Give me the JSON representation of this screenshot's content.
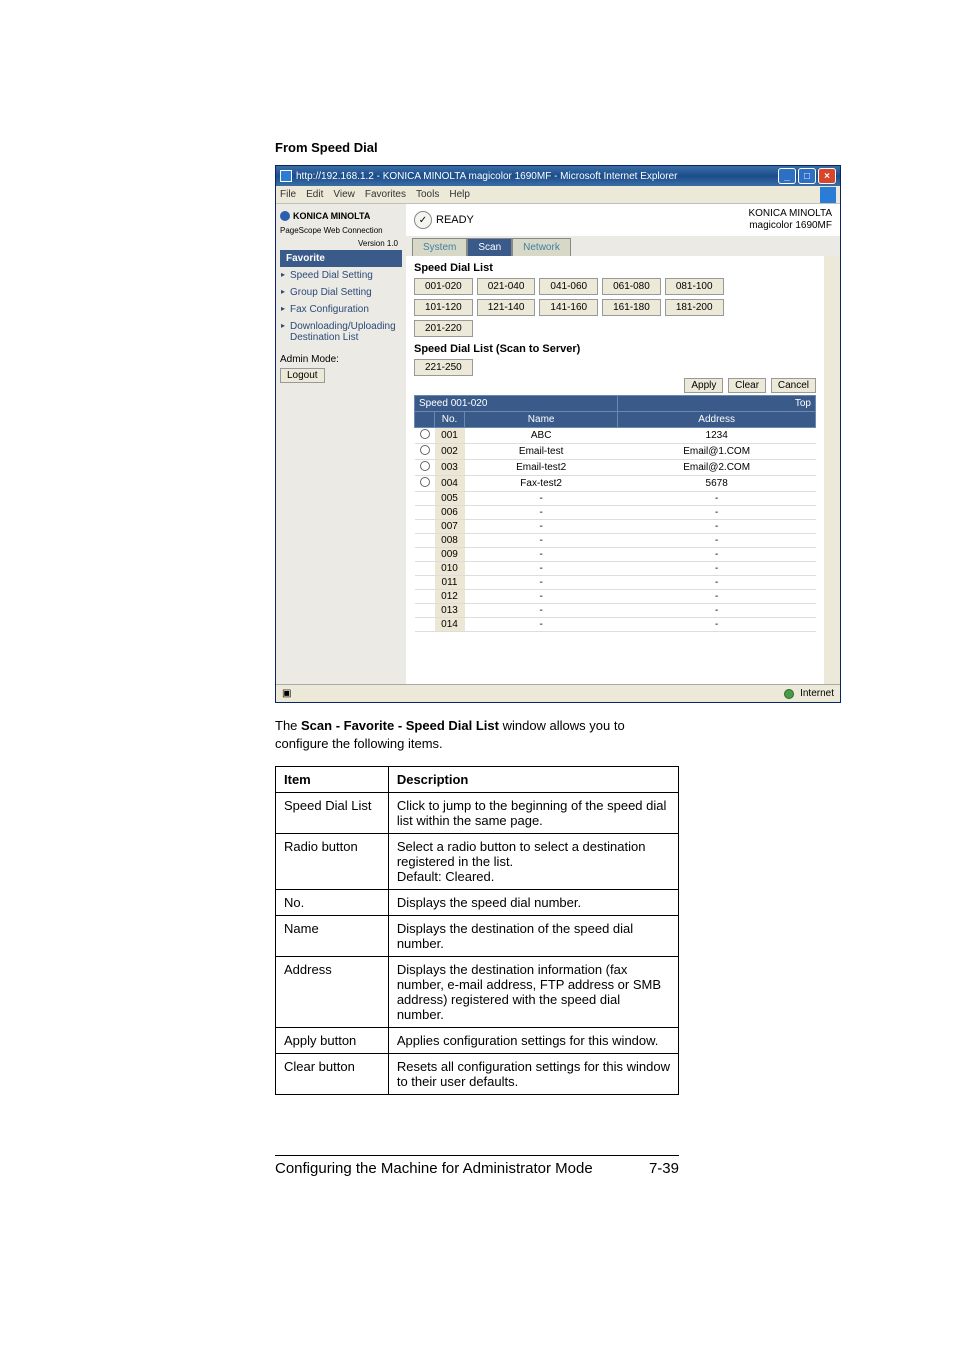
{
  "section_title": "From Speed Dial",
  "browser": {
    "title": "http://192.168.1.2 - KONICA MINOLTA magicolor 1690MF - Microsoft Internet Explorer",
    "menus": [
      "File",
      "Edit",
      "View",
      "Favorites",
      "Tools",
      "Help"
    ],
    "win_min": "_",
    "win_max": "□",
    "win_close": "×"
  },
  "left": {
    "brand": "KONICA MINOLTA",
    "pagescope": "PageScope Web Connection",
    "version": "Version 1.0",
    "nav_head": "Favorite",
    "items": [
      "Speed Dial Setting",
      "Group Dial Setting",
      "Fax Configuration",
      "Downloading/Uploading Destination List"
    ],
    "admin": "Admin Mode:",
    "logout": "Logout"
  },
  "top": {
    "ready": "READY",
    "ready_icon": "✓",
    "brand_line1": "KONICA MINOLTA",
    "brand_line2": "magicolor 1690MF"
  },
  "tabs": {
    "system": "System",
    "scan": "Scan",
    "network": "Network"
  },
  "pane": {
    "title": "Speed Dial List",
    "ranges_row1": [
      "001-020",
      "021-040",
      "041-060",
      "061-080",
      "081-100"
    ],
    "ranges_row2": [
      "101-120",
      "121-140",
      "141-160",
      "161-180",
      "181-200"
    ],
    "ranges_row3": [
      "201-220"
    ],
    "subhead": "Speed Dial List (Scan to Server)",
    "ranges_row4": [
      "221-250"
    ],
    "apply": "Apply",
    "clear": "Clear",
    "cancel": "Cancel",
    "table_header_left": "Speed 001-020",
    "table_header_right": "Top",
    "col_no": "No.",
    "col_name": "Name",
    "col_addr": "Address",
    "rows": [
      {
        "radio": true,
        "no": "001",
        "name": "ABC",
        "addr": "1234"
      },
      {
        "radio": true,
        "no": "002",
        "name": "Email-test",
        "addr": "Email@1.COM"
      },
      {
        "radio": true,
        "no": "003",
        "name": "Email-test2",
        "addr": "Email@2.COM"
      },
      {
        "radio": true,
        "no": "004",
        "name": "Fax-test2",
        "addr": "5678"
      },
      {
        "radio": false,
        "no": "005",
        "name": "-",
        "addr": "-"
      },
      {
        "radio": false,
        "no": "006",
        "name": "-",
        "addr": "-"
      },
      {
        "radio": false,
        "no": "007",
        "name": "-",
        "addr": "-"
      },
      {
        "radio": false,
        "no": "008",
        "name": "-",
        "addr": "-"
      },
      {
        "radio": false,
        "no": "009",
        "name": "-",
        "addr": "-"
      },
      {
        "radio": false,
        "no": "010",
        "name": "-",
        "addr": "-"
      },
      {
        "radio": false,
        "no": "011",
        "name": "-",
        "addr": "-"
      },
      {
        "radio": false,
        "no": "012",
        "name": "-",
        "addr": "-"
      },
      {
        "radio": false,
        "no": "013",
        "name": "-",
        "addr": "-"
      },
      {
        "radio": false,
        "no": "014",
        "name": "-",
        "addr": "-"
      }
    ]
  },
  "status": {
    "internet": "Internet",
    "done_icon": "🟦"
  },
  "desc_intro_pre": "The ",
  "desc_intro_bold": "Scan - Favorite - Speed Dial List",
  "desc_intro_post": " window allows you to configure the following items.",
  "doc_table": {
    "h_item": "Item",
    "h_desc": "Description",
    "rows": [
      {
        "item": "Speed Dial List",
        "desc": "Click to jump to the beginning of the speed dial list within the same page."
      },
      {
        "item": "Radio button",
        "desc": "Select a radio button to select a destination registered in the list.\nDefault: Cleared."
      },
      {
        "item": "No.",
        "desc": "Displays the speed dial number."
      },
      {
        "item": "Name",
        "desc": "Displays the destination of the speed dial number."
      },
      {
        "item": "Address",
        "desc": "Displays the destination information (fax number, e-mail address, FTP address or SMB address) registered with the speed dial number."
      },
      {
        "item": "Apply button",
        "desc": "Applies configuration settings for this window."
      },
      {
        "item": "Clear button",
        "desc": "Resets all configuration settings for this window to their user defaults."
      }
    ]
  },
  "footer": {
    "left": "Configuring the Machine for Administrator Mode",
    "right": "7-39"
  }
}
